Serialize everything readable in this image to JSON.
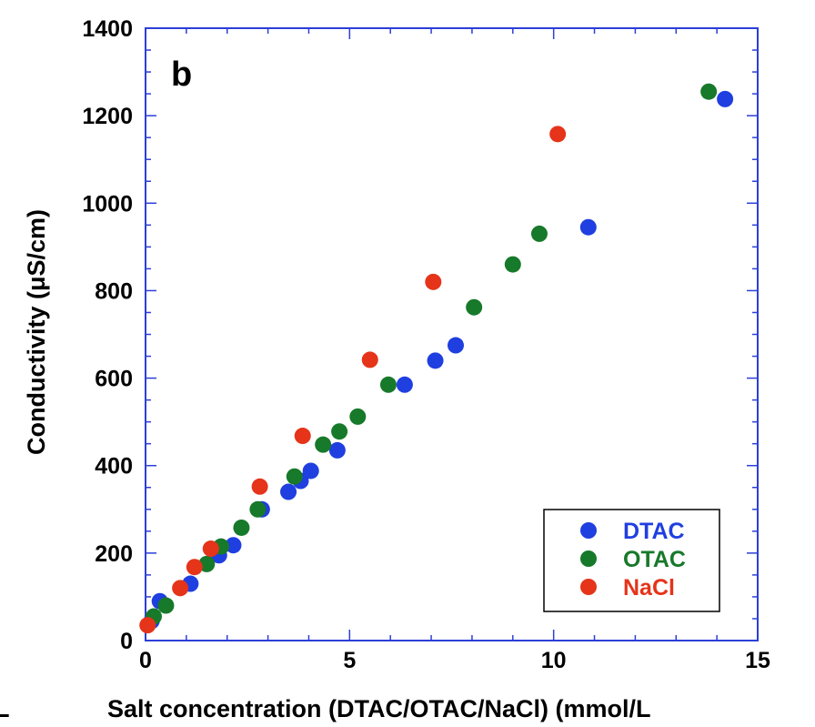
{
  "panel_letter": "b",
  "stray_left_char": "L",
  "colors": {
    "frame": "#2d3ed8",
    "DTAC": "#1f3fe0",
    "OTAC": "#17792a",
    "NaCl": "#e5341a",
    "text": "#000000"
  },
  "chart_data": {
    "type": "scatter",
    "title": "",
    "xlabel": "Salt concentration (DTAC/OTAC/NaCl) (mmol/L",
    "ylabel": "Conductivity  (μS/cm)",
    "xlim": [
      0,
      15
    ],
    "ylim": [
      0,
      1400
    ],
    "xticks": [
      0,
      5,
      10,
      15
    ],
    "yticks": [
      0,
      200,
      400,
      600,
      800,
      1000,
      1200,
      1400
    ],
    "grid": false,
    "legend_position": "bottom-right",
    "series": [
      {
        "name": "DTAC",
        "color": "#1f3fe0",
        "points": [
          [
            0.15,
            45
          ],
          [
            0.35,
            90
          ],
          [
            1.1,
            130
          ],
          [
            1.8,
            195
          ],
          [
            2.15,
            218
          ],
          [
            2.85,
            300
          ],
          [
            3.5,
            340
          ],
          [
            3.8,
            365
          ],
          [
            4.05,
            388
          ],
          [
            4.7,
            435
          ],
          [
            6.35,
            585
          ],
          [
            7.1,
            640
          ],
          [
            7.6,
            675
          ],
          [
            10.85,
            945
          ],
          [
            14.2,
            1238
          ]
        ]
      },
      {
        "name": "OTAC",
        "color": "#17792a",
        "points": [
          [
            0.2,
            55
          ],
          [
            0.5,
            80
          ],
          [
            1.5,
            175
          ],
          [
            1.85,
            215
          ],
          [
            2.35,
            258
          ],
          [
            2.75,
            300
          ],
          [
            3.65,
            375
          ],
          [
            4.35,
            448
          ],
          [
            4.75,
            478
          ],
          [
            5.2,
            512
          ],
          [
            5.95,
            585
          ],
          [
            8.05,
            762
          ],
          [
            9.0,
            860
          ],
          [
            9.65,
            930
          ],
          [
            13.8,
            1255
          ]
        ]
      },
      {
        "name": "NaCl",
        "color": "#e5341a",
        "points": [
          [
            0.05,
            35
          ],
          [
            0.85,
            120
          ],
          [
            1.2,
            168
          ],
          [
            1.6,
            210
          ],
          [
            2.8,
            352
          ],
          [
            3.85,
            468
          ],
          [
            5.5,
            642
          ],
          [
            7.05,
            820
          ],
          [
            10.1,
            1158
          ]
        ]
      }
    ]
  }
}
